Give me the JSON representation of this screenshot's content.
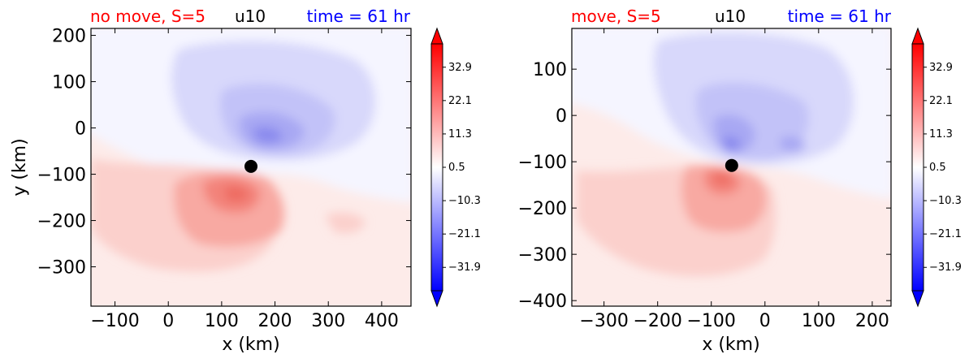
{
  "chart_data": [
    {
      "type": "heatmap",
      "title_left": "no move, S=5",
      "title_center": "u10",
      "title_right": "time = 61 hr",
      "title_colors": {
        "left": "#ff0000",
        "center": "#000000",
        "right": "#0000ff"
      },
      "xlabel": "x (km)",
      "ylabel": "y (km)",
      "xlim": [
        -145,
        455
      ],
      "ylim": [
        -385,
        215
      ],
      "xticks": [
        -100,
        0,
        100,
        200,
        300,
        400
      ],
      "yticks": [
        200,
        100,
        0,
        -100,
        -200,
        -300
      ],
      "center_marker": {
        "x": 155,
        "y": -83
      },
      "colorbar": {
        "ticks": [
          "32.9",
          "22.1",
          "11.3",
          "0.5",
          "−10.3",
          "−21.1",
          "−31.9"
        ],
        "vmin": -43,
        "vmax": 43,
        "extend": "both",
        "cmap": "bwr"
      }
    },
    {
      "type": "heatmap",
      "title_left": "move, S=5",
      "title_center": "u10",
      "title_right": "time = 61 hr",
      "title_colors": {
        "left": "#ff0000",
        "center": "#000000",
        "right": "#0000ff"
      },
      "xlabel": "x (km)",
      "ylabel": "",
      "xlim": [
        -360,
        235
      ],
      "ylim": [
        -412,
        188
      ],
      "xticks": [
        -300,
        -200,
        -100,
        0,
        100,
        200
      ],
      "yticks": [
        100,
        0,
        -100,
        -200,
        -300,
        -400
      ],
      "center_marker": {
        "x": -62,
        "y": -108
      },
      "colorbar": {
        "ticks": [
          "32.9",
          "22.1",
          "11.3",
          "0.5",
          "−10.3",
          "−21.1",
          "−31.9"
        ],
        "vmin": -43,
        "vmax": 43,
        "extend": "both",
        "cmap": "bwr"
      }
    }
  ]
}
